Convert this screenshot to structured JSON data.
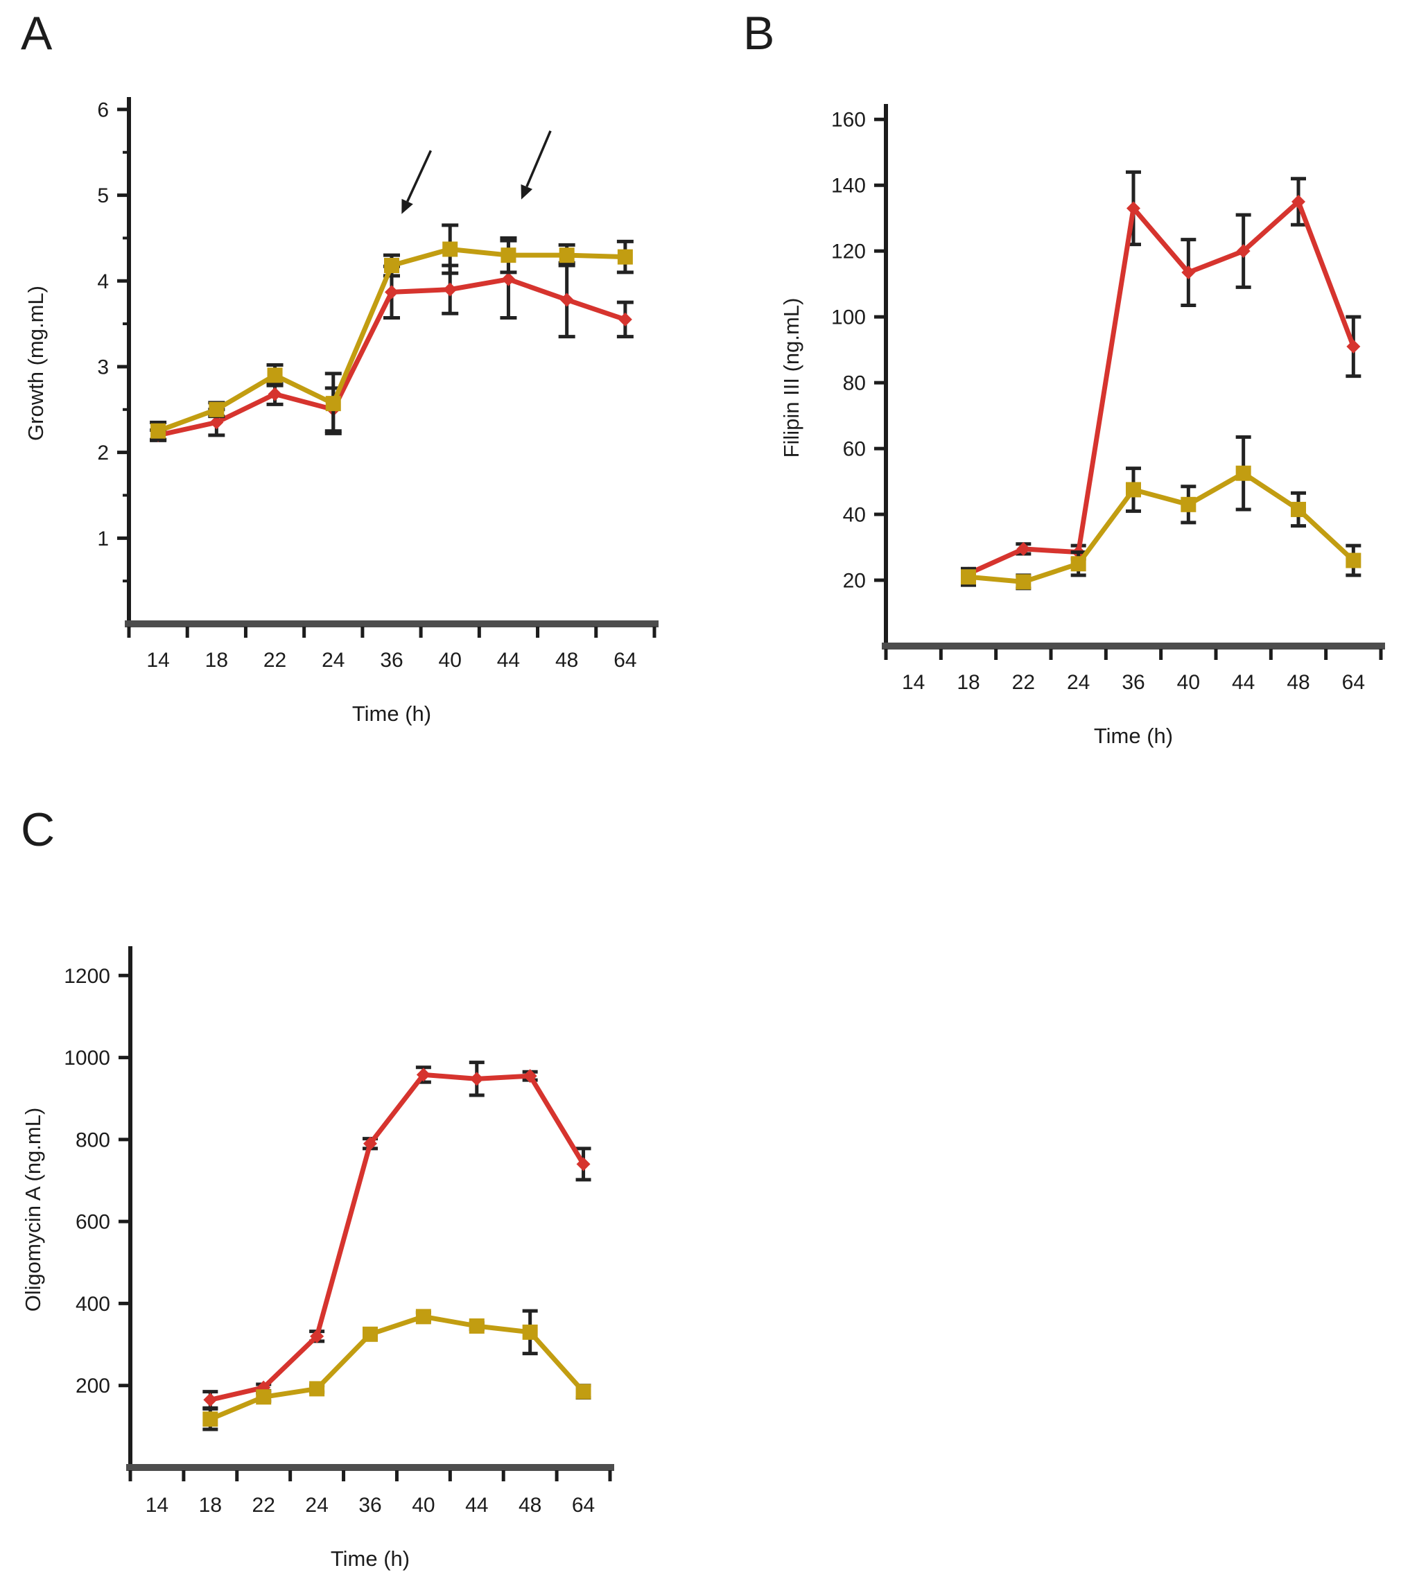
{
  "figure": {
    "background": "#ffffff"
  },
  "colors": {
    "red_series": "#d6342e",
    "gold_series": "#c29d11",
    "error_bar": "#222222",
    "y_axis": "#1c1c1c",
    "x_axis": "#4d4d4d",
    "text": "#1c1c1c",
    "arrow": "#1c1c1c"
  },
  "chart_data": [
    {
      "id": "A",
      "panel_label": "A",
      "type": "line",
      "title": "",
      "xlabel": "Time (h)",
      "ylabel": "Growth (mg.mL)",
      "categories": [
        "14",
        "18",
        "22",
        "24",
        "36",
        "40",
        "44",
        "48",
        "64"
      ],
      "y_ticks": [
        1,
        2,
        3,
        4,
        5,
        6
      ],
      "ylim": [
        0,
        6.08
      ],
      "y_minor_step": 0.5,
      "legend": "none",
      "grid": false,
      "series": [
        {
          "name": "red_diamonds",
          "marker": "diamond",
          "color_key": "red_series",
          "values": [
            2.2,
            2.35,
            2.68,
            2.5,
            3.87,
            3.9,
            4.02,
            3.78,
            3.55
          ],
          "errors": [
            0.06,
            0.15,
            0.12,
            0.25,
            0.3,
            0.28,
            0.45,
            0.43,
            0.2
          ]
        },
        {
          "name": "gold_squares",
          "marker": "square",
          "color_key": "gold_series",
          "values": [
            2.25,
            2.5,
            2.9,
            2.57,
            4.18,
            4.37,
            4.3,
            4.3,
            4.28
          ],
          "errors": [
            0.1,
            0.08,
            0.12,
            0.35,
            0.12,
            0.28,
            0.2,
            0.12,
            0.18
          ]
        }
      ],
      "annotations": [
        {
          "type": "arrow",
          "tail": {
            "ci": 4.67,
            "v": 5.52
          },
          "tip": {
            "ci": 4.17,
            "v": 4.78
          }
        },
        {
          "type": "arrow",
          "tail": {
            "ci": 6.72,
            "v": 5.75
          },
          "tip": {
            "ci": 6.22,
            "v": 4.95
          }
        }
      ]
    },
    {
      "id": "B",
      "panel_label": "B",
      "type": "line",
      "title": "",
      "xlabel": "Time (h)",
      "ylabel": "Filipin III (ng.mL)",
      "categories": [
        "14",
        "18",
        "22",
        "24",
        "36",
        "40",
        "44",
        "48",
        "64"
      ],
      "y_ticks": [
        20,
        40,
        60,
        80,
        100,
        120,
        140,
        160
      ],
      "ylim": [
        0,
        163
      ],
      "y_minor_step": 0,
      "legend": "none",
      "grid": false,
      "series": [
        {
          "name": "red_diamonds",
          "marker": "diamond",
          "color_key": "red_series",
          "values": [
            null,
            22,
            29.5,
            28.5,
            133,
            113.5,
            120,
            135,
            91
          ],
          "errors": [
            null,
            1.5,
            1.5,
            2,
            11,
            10,
            11,
            7,
            9
          ]
        },
        {
          "name": "gold_squares",
          "marker": "square",
          "color_key": "gold_series",
          "values": [
            null,
            21,
            19.5,
            25,
            47.5,
            43,
            52.5,
            41.5,
            26
          ],
          "errors": [
            null,
            2.5,
            2,
            3.5,
            6.5,
            5.5,
            11,
            5,
            4.5
          ]
        }
      ],
      "annotations": []
    },
    {
      "id": "C",
      "panel_label": "C",
      "type": "line",
      "title": "",
      "xlabel": "Time (h)",
      "ylabel": "Oligomycin A (ng.mL)",
      "categories": [
        "14",
        "18",
        "22",
        "24",
        "36",
        "40",
        "44",
        "48",
        "64"
      ],
      "y_ticks": [
        200,
        400,
        600,
        800,
        1000,
        1200
      ],
      "ylim": [
        0,
        1258
      ],
      "y_minor_step": 0,
      "legend": "none",
      "grid": false,
      "series": [
        {
          "name": "red_diamonds",
          "marker": "diamond",
          "color_key": "red_series",
          "values": [
            null,
            165,
            195,
            320,
            790,
            958,
            948,
            955,
            740
          ],
          "errors": [
            null,
            20,
            8,
            12,
            12,
            18,
            40,
            10,
            38
          ]
        },
        {
          "name": "gold_squares",
          "marker": "square",
          "color_key": "gold_series",
          "values": [
            null,
            118,
            172,
            192,
            325,
            368,
            345,
            330,
            185
          ],
          "errors": [
            null,
            25,
            10,
            8,
            8,
            10,
            8,
            52,
            15
          ]
        }
      ],
      "annotations": []
    }
  ]
}
